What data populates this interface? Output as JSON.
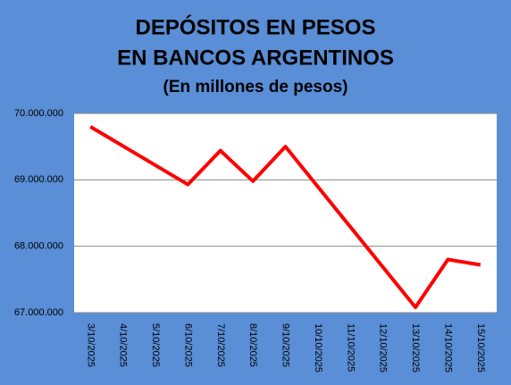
{
  "chart_data": {
    "type": "line",
    "title": [
      "DEPÓSITOS EN PESOS",
      "EN BANCOS ARGENTINOS"
    ],
    "subtitle": "(En millones de pesos)",
    "xticks": [
      "3/10/2025",
      "4/10/2025",
      "5/10/2025",
      "6/10/2025",
      "7/10/2025",
      "8/10/2025",
      "9/10/2025",
      "10/10/2025",
      "11/10/2025",
      "12/10/2025",
      "13/10/2025",
      "14/10/2025",
      "15/10/2025"
    ],
    "x": [
      "3/10/2025",
      "6/10/2025",
      "7/10/2025",
      "8/10/2025",
      "9/10/2025",
      "13/10/2025",
      "14/10/2025",
      "15/10/2025"
    ],
    "series": [
      {
        "color": "#ff0000",
        "values": [
          69800000,
          68930000,
          69440000,
          68980000,
          69500000,
          67080000,
          67800000,
          67720000
        ]
      }
    ],
    "ylim": [
      67000000,
      70000000
    ],
    "yticks": [
      {
        "value": 67000000,
        "label": "67.000.000"
      },
      {
        "value": 68000000,
        "label": "68.000.000"
      },
      {
        "value": 69000000,
        "label": "69.000.000"
      },
      {
        "value": 70000000,
        "label": "70.000.000"
      }
    ],
    "grid": true
  }
}
